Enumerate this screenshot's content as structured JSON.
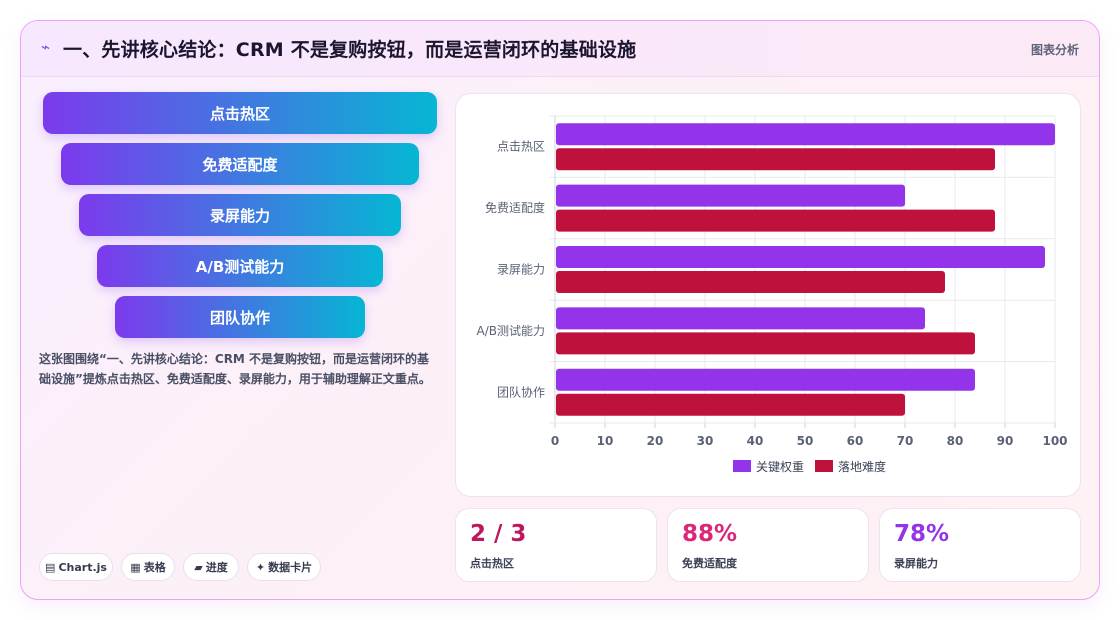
{
  "header": {
    "icon": "bolt-icon",
    "title": "一、先讲核心结论：CRM 不是复购按钮，而是运营闭环的基础设施",
    "tag": "图表分析"
  },
  "funnel": {
    "items": [
      "点击热区",
      "免费适配度",
      "录屏能力",
      "A/B测试能力",
      "团队协作"
    ]
  },
  "description": "这张图围绕“一、先讲核心结论：CRM 不是复购按钮，而是运营闭环的基础设施”提炼点击热区、免费适配度、录屏能力，用于辅助理解正文重点。",
  "chips": [
    {
      "icon": "chart-icon",
      "label": "Chart.js"
    },
    {
      "icon": "table-icon",
      "label": "表格"
    },
    {
      "icon": "folder-icon",
      "label": "进度"
    },
    {
      "icon": "sparkle-icon",
      "label": "数据卡片"
    }
  ],
  "chart_data": {
    "type": "bar",
    "orientation": "horizontal",
    "categories": [
      "点击热区",
      "免费适配度",
      "录屏能力",
      "A/B测试能力",
      "团队协作"
    ],
    "series": [
      {
        "name": "关键权重",
        "color": "#9333ea",
        "values": [
          100,
          70,
          98,
          74,
          84
        ]
      },
      {
        "name": "落地难度",
        "color": "#be123c",
        "values": [
          88,
          88,
          78,
          84,
          70
        ]
      }
    ],
    "xlim": [
      0,
      100
    ],
    "xticks": [
      "0",
      "10",
      "20",
      "30",
      "40",
      "50",
      "60",
      "70",
      "80",
      "90",
      "100"
    ],
    "grid": true,
    "legend": "bottom"
  },
  "stats": [
    {
      "value": "2 / 3",
      "label": "点击热区",
      "color": "#be185d"
    },
    {
      "value": "88%",
      "label": "免费适配度",
      "color": "#db2777"
    },
    {
      "value": "78%",
      "label": "录屏能力",
      "color": "#9333ea"
    }
  ]
}
